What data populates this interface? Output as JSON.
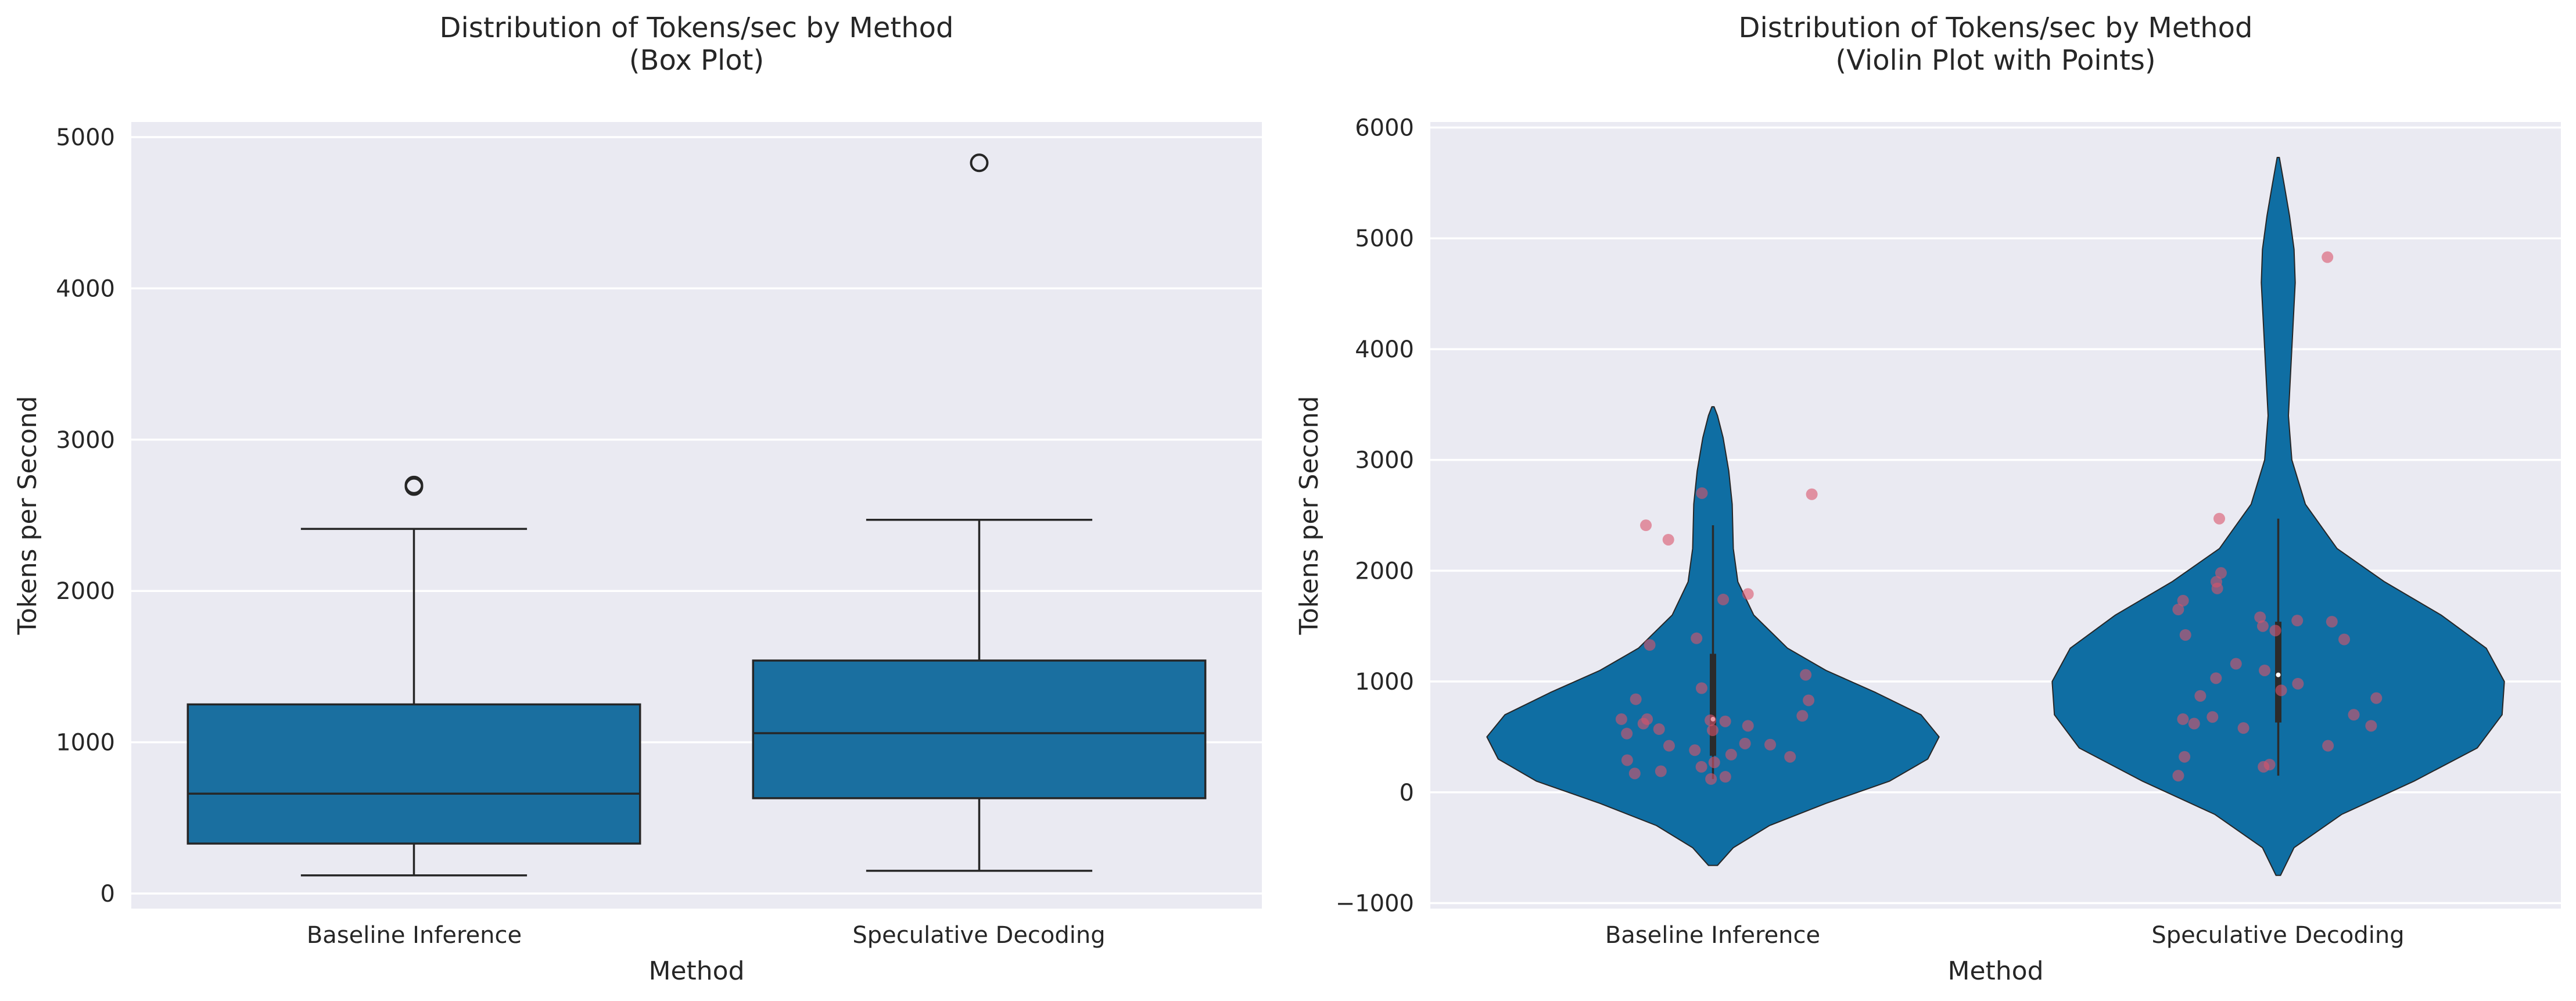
{
  "colors": {
    "panel_bg": "#eaeaf2",
    "grid": "#ffffff",
    "box_fill": "#1a6fa0",
    "violin_fill": "#0f6ea3",
    "edge": "#262626",
    "points": "#d9536a"
  },
  "chart_data": [
    {
      "type": "box",
      "title": "Distribution of Tokens/sec by Method\n(Box Plot)",
      "xlabel": "Method",
      "ylabel": "Tokens per Second",
      "categories": [
        "Baseline Inference",
        "Speculative Decoding"
      ],
      "ylim": [
        -100,
        5100
      ],
      "yticks": [
        0,
        1000,
        2000,
        3000,
        4000,
        5000
      ],
      "grid": true,
      "boxes": [
        {
          "name": "Baseline Inference",
          "whisker_low": 120,
          "q1": 330,
          "median": 660,
          "q3": 1250,
          "whisker_high": 2410,
          "outliers": [
            2690,
            2700
          ]
        },
        {
          "name": "Speculative Decoding",
          "whisker_low": 150,
          "q1": 630,
          "median": 1060,
          "q3": 1540,
          "whisker_high": 2470,
          "outliers": [
            4830
          ]
        }
      ]
    },
    {
      "type": "violin",
      "title": "Distribution of Tokens/sec by Method\n(Violin Plot with Points)",
      "xlabel": "Method",
      "ylabel": "Tokens per Second",
      "categories": [
        "Baseline Inference",
        "Speculative Decoding"
      ],
      "ylim": [
        -1050,
        6050
      ],
      "yticks": [
        -1000,
        0,
        1000,
        2000,
        3000,
        4000,
        5000,
        6000
      ],
      "grid": true,
      "violins": [
        {
          "name": "Baseline Inference",
          "q1": 330,
          "median": 660,
          "q3": 1250,
          "whisker_low": 120,
          "whisker_high": 2410,
          "density": [
            [
              -660,
              0.02
            ],
            [
              -500,
              0.09
            ],
            [
              -300,
              0.25
            ],
            [
              -100,
              0.5
            ],
            [
              100,
              0.78
            ],
            [
              300,
              0.95
            ],
            [
              500,
              1.0
            ],
            [
              700,
              0.92
            ],
            [
              900,
              0.72
            ],
            [
              1100,
              0.5
            ],
            [
              1300,
              0.33
            ],
            [
              1600,
              0.18
            ],
            [
              1900,
              0.11
            ],
            [
              2200,
              0.09
            ],
            [
              2600,
              0.085
            ],
            [
              2900,
              0.07
            ],
            [
              3200,
              0.045
            ],
            [
              3400,
              0.02
            ],
            [
              3480,
              0.005
            ]
          ],
          "points": [
            120,
            140,
            170,
            190,
            230,
            270,
            290,
            320,
            340,
            380,
            420,
            430,
            440,
            530,
            560,
            570,
            600,
            620,
            640,
            650,
            660,
            660,
            690,
            830,
            840,
            940,
            1060,
            1330,
            1390,
            1740,
            1790,
            2280,
            2410,
            2690,
            2700
          ]
        },
        {
          "name": "Speculative Decoding",
          "q1": 630,
          "median": 1060,
          "q3": 1540,
          "whisker_low": 150,
          "whisker_high": 2470,
          "density": [
            [
              -750,
              0.01
            ],
            [
              -500,
              0.07
            ],
            [
              -200,
              0.28
            ],
            [
              100,
              0.6
            ],
            [
              400,
              0.88
            ],
            [
              700,
              0.99
            ],
            [
              1000,
              1.0
            ],
            [
              1300,
              0.92
            ],
            [
              1600,
              0.72
            ],
            [
              1900,
              0.47
            ],
            [
              2200,
              0.26
            ],
            [
              2600,
              0.12
            ],
            [
              3000,
              0.06
            ],
            [
              3400,
              0.045
            ],
            [
              3800,
              0.055
            ],
            [
              4200,
              0.065
            ],
            [
              4600,
              0.075
            ],
            [
              4900,
              0.07
            ],
            [
              5200,
              0.05
            ],
            [
              5500,
              0.025
            ],
            [
              5730,
              0.005
            ]
          ],
          "points": [
            150,
            230,
            250,
            320,
            420,
            580,
            600,
            620,
            660,
            680,
            700,
            850,
            870,
            920,
            980,
            1030,
            1100,
            1160,
            1380,
            1420,
            1460,
            1500,
            1540,
            1550,
            1580,
            1650,
            1730,
            1840,
            1900,
            1980,
            2470,
            4830
          ]
        }
      ]
    }
  ]
}
